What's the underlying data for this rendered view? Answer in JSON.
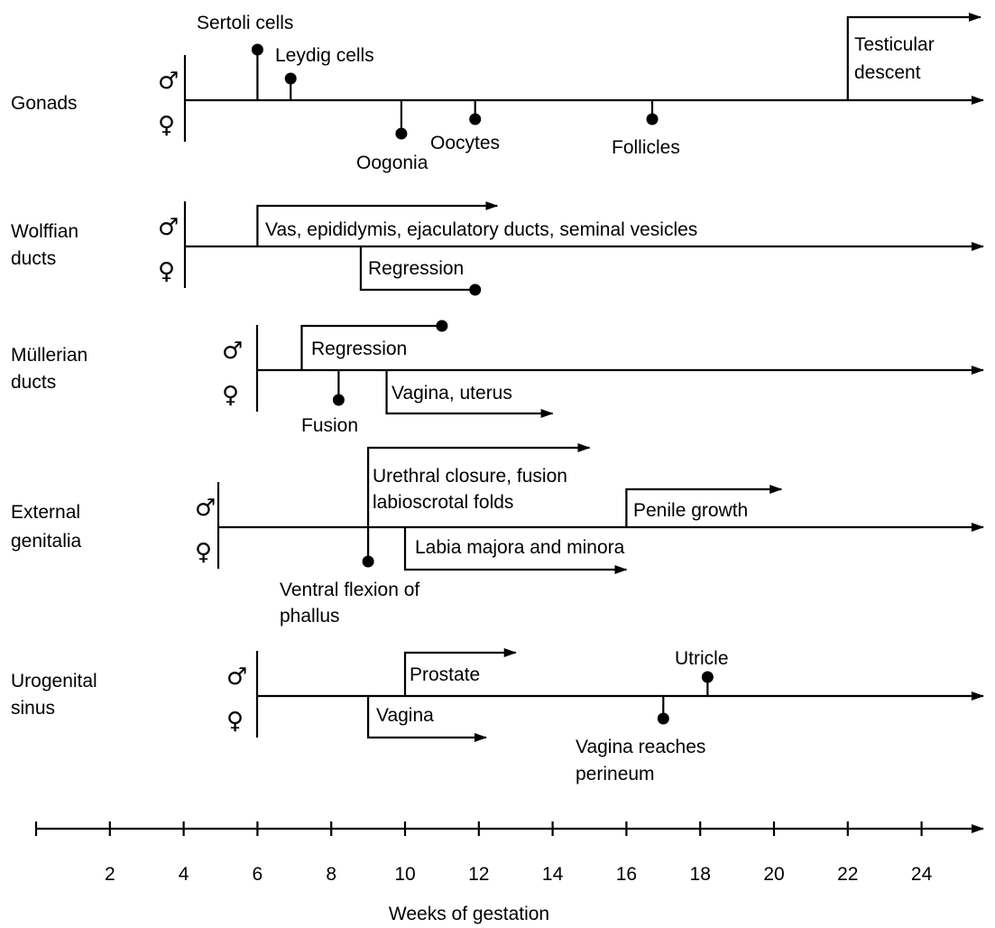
{
  "symbols": {
    "male": "♂",
    "female": "♀"
  },
  "timeline": {
    "axis_label": "Weeks of gestation",
    "ticks": [
      0,
      2,
      4,
      6,
      8,
      10,
      12,
      14,
      16,
      18,
      20,
      22,
      24
    ],
    "tick_labels": [
      "2",
      "4",
      "6",
      "8",
      "10",
      "12",
      "14",
      "16",
      "18",
      "20",
      "22",
      "24"
    ]
  },
  "rows": [
    {
      "id": "gonads",
      "label": [
        "Gonads"
      ],
      "events": [
        {
          "id": "sertoli-cells",
          "label": [
            "Sertoli cells"
          ],
          "side": "male",
          "kind": "dot",
          "week": 6
        },
        {
          "id": "leydig-cells",
          "label": [
            "Leydig cells"
          ],
          "side": "male",
          "kind": "dot",
          "week": 6.9
        },
        {
          "id": "oogonia",
          "label": [
            "Oogonia"
          ],
          "side": "female",
          "kind": "dot",
          "week": 9.9
        },
        {
          "id": "oocytes",
          "label": [
            "Oocytes"
          ],
          "side": "female",
          "kind": "dot",
          "week": 11.9
        },
        {
          "id": "follicles",
          "label": [
            "Follicles"
          ],
          "side": "female",
          "kind": "dot",
          "week": 16.7
        },
        {
          "id": "testicular-descent",
          "label": [
            "Testicular",
            "descent"
          ],
          "side": "male",
          "kind": "arrow",
          "week_start": 22,
          "week_end": 25.6
        }
      ]
    },
    {
      "id": "wolffian-ducts",
      "label": [
        "Wolffian",
        "ducts"
      ],
      "events": [
        {
          "id": "vas-epididymis",
          "label": [
            "Vas, epididymis, ejaculatory ducts, seminal vesicles"
          ],
          "side": "male",
          "kind": "arrow",
          "week_start": 6,
          "week_end": 12.5
        },
        {
          "id": "wolffian-regression",
          "label": [
            "Regression"
          ],
          "side": "female",
          "kind": "bracket-dot",
          "week_start": 8.8,
          "week_end": 11.9
        }
      ]
    },
    {
      "id": "mullerian-ducts",
      "label": [
        "Müllerian",
        "ducts"
      ],
      "events": [
        {
          "id": "mullerian-regression",
          "label": [
            "Regression"
          ],
          "side": "male",
          "kind": "bracket-dot",
          "week_start": 7.2,
          "week_end": 11
        },
        {
          "id": "fusion",
          "label": [
            "Fusion"
          ],
          "side": "female",
          "kind": "dot",
          "week": 8.2
        },
        {
          "id": "vagina-uterus",
          "label": [
            "Vagina, uterus"
          ],
          "side": "female",
          "kind": "arrow",
          "week_start": 9.5,
          "week_end": 14
        }
      ]
    },
    {
      "id": "external-genitalia",
      "label": [
        "External",
        "genitalia"
      ],
      "events": [
        {
          "id": "urethral-closure",
          "label": [
            "Urethral closure, fusion",
            "labioscrotal folds"
          ],
          "side": "male",
          "kind": "arrow",
          "week_start": 9,
          "week_end": 15
        },
        {
          "id": "penile-growth",
          "label": [
            "Penile growth"
          ],
          "side": "male",
          "kind": "arrow",
          "week_start": 16,
          "week_end": 20.2
        },
        {
          "id": "ventral-flexion",
          "label": [
            "Ventral flexion of",
            "phallus"
          ],
          "side": "female",
          "kind": "dot",
          "week": 9
        },
        {
          "id": "labia",
          "label": [
            "Labia majora and minora"
          ],
          "side": "female",
          "kind": "arrow",
          "week_start": 10,
          "week_end": 16
        }
      ]
    },
    {
      "id": "urogenital-sinus",
      "label": [
        "Urogenital",
        "sinus"
      ],
      "events": [
        {
          "id": "prostate",
          "label": [
            "Prostate"
          ],
          "side": "male",
          "kind": "arrow",
          "week_start": 10,
          "week_end": 13
        },
        {
          "id": "utricle",
          "label": [
            "Utricle"
          ],
          "side": "male",
          "kind": "dot",
          "week": 18.2
        },
        {
          "id": "vagina",
          "label": [
            "Vagina"
          ],
          "side": "female",
          "kind": "arrow",
          "week_start": 9,
          "week_end": 12.2
        },
        {
          "id": "vagina-perineum",
          "label": [
            "Vagina reaches",
            "perineum"
          ],
          "side": "female",
          "kind": "dot",
          "week": 17
        }
      ]
    }
  ]
}
